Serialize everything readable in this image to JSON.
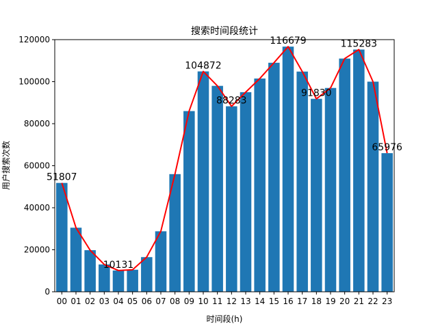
{
  "chart_data": {
    "type": "bar",
    "title": "搜索时间段统计",
    "xlabel": "时间段(h)",
    "ylabel": "用户搜索次数",
    "categories": [
      "00",
      "01",
      "02",
      "03",
      "04",
      "05",
      "06",
      "07",
      "08",
      "09",
      "10",
      "11",
      "12",
      "13",
      "14",
      "15",
      "16",
      "17",
      "18",
      "19",
      "20",
      "21",
      "22",
      "23"
    ],
    "values": [
      51807,
      30500,
      19800,
      13000,
      10131,
      10500,
      16500,
      28800,
      56000,
      86000,
      104872,
      98000,
      88283,
      95000,
      101500,
      109000,
      116679,
      104800,
      91830,
      97000,
      111000,
      115283,
      100000,
      65976
    ],
    "line_overlay": {
      "color": "#ff0000"
    },
    "data_labels": [
      {
        "index": 0,
        "text": "51807"
      },
      {
        "index": 4,
        "text": "10131"
      },
      {
        "index": 10,
        "text": "104872"
      },
      {
        "index": 12,
        "text": "88283"
      },
      {
        "index": 16,
        "text": "116679"
      },
      {
        "index": 18,
        "text": "91830"
      },
      {
        "index": 21,
        "text": "115283"
      },
      {
        "index": 23,
        "text": "65976"
      }
    ],
    "ylim": [
      0,
      120000
    ],
    "yticks": [
      0,
      20000,
      40000,
      60000,
      80000,
      100000,
      120000
    ],
    "bar_color": "#1f77b4",
    "grid": false,
    "legend": "none"
  }
}
